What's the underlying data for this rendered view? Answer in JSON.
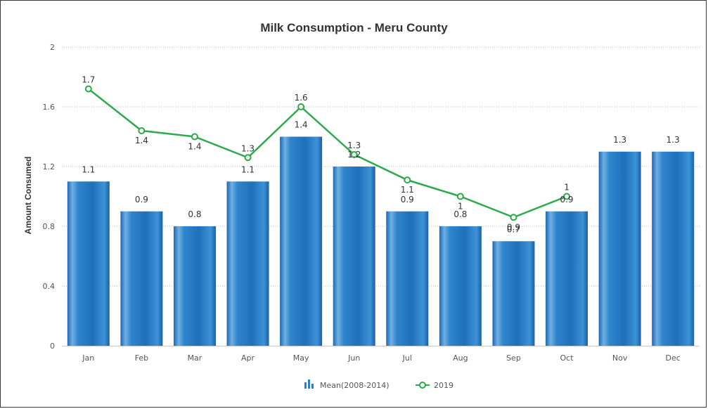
{
  "chart_data": {
    "type": "bar",
    "title": "Milk Consumption - Meru County",
    "ylabel": "Amount Consumed",
    "xlabel": "",
    "ylim": [
      0,
      2
    ],
    "yticks": [
      0,
      0.4,
      0.8,
      1.2,
      1.6,
      2
    ],
    "ytick_labels": [
      "0",
      "0.4",
      "0.8",
      "1.2",
      "1.6",
      "2"
    ],
    "grid": true,
    "legend_position": "bottom-center",
    "categories": [
      "Jan",
      "Feb",
      "Mar",
      "Apr",
      "May",
      "Jun",
      "Jul",
      "Aug",
      "Sep",
      "Oct",
      "Nov",
      "Dec"
    ],
    "series": [
      {
        "name": "Mean(2008-2014)",
        "type": "bar",
        "color": "#2b7fc6",
        "values": [
          1.1,
          0.9,
          0.8,
          1.1,
          1.4,
          1.2,
          0.9,
          0.8,
          0.7,
          0.9,
          1.3,
          1.3
        ],
        "labels": [
          "1.1",
          "0.9",
          "0.8",
          "1.1",
          "1.4",
          "1.2",
          "0.9",
          "0.8",
          "0.7",
          "0.9",
          "1.3",
          "1.3"
        ]
      },
      {
        "name": "2019",
        "type": "line",
        "color": "#2aaa4a",
        "values": [
          1.72,
          1.44,
          1.4,
          1.26,
          1.6,
          1.28,
          1.11,
          1.0,
          0.86,
          1.0,
          null,
          null
        ],
        "labels": [
          "1.7",
          "1.4",
          "1.4",
          "1.3",
          "1.6",
          "1.3",
          "1.1",
          "1",
          "0.9",
          "1",
          null,
          null
        ]
      }
    ],
    "legend_icon": "bar-chart-icon"
  }
}
